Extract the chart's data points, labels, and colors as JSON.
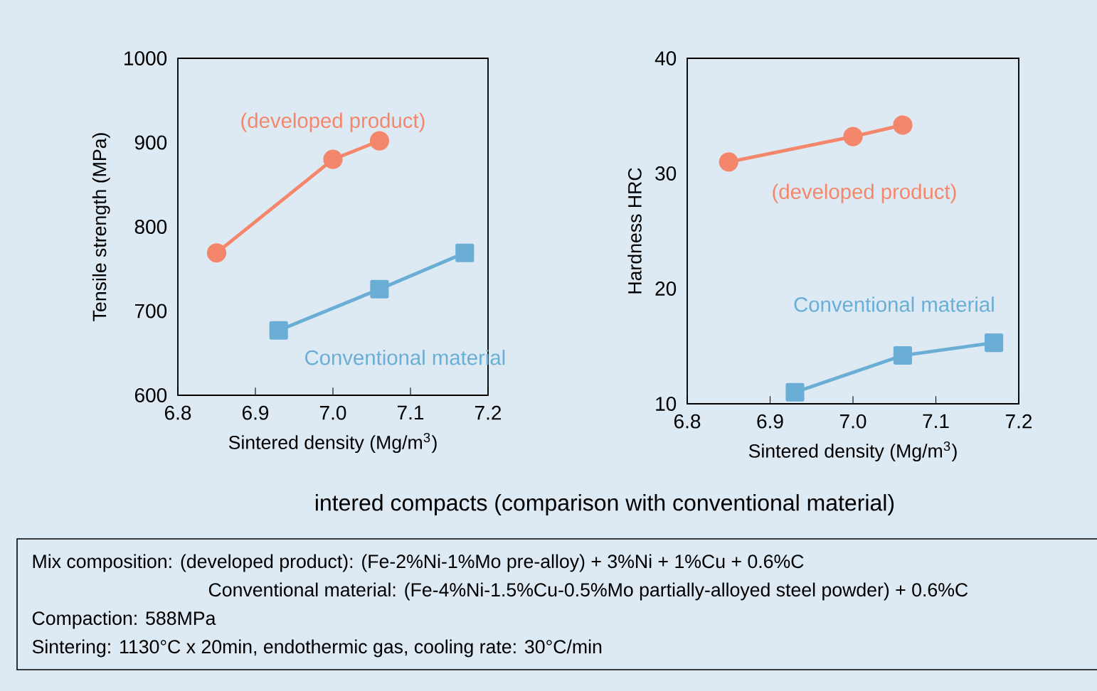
{
  "chart_data": [
    {
      "type": "line",
      "xlabel": "Sintered density (Mg/m$^{3}$)",
      "ylabel": "Tensile strength (MPa)",
      "xlim": [
        6.8,
        7.2
      ],
      "xticks": [
        6.8,
        6.9,
        {
          "value": 7.0,
          "label": "7.0"
        },
        7.1,
        7.2
      ],
      "ylim": [
        600,
        1000
      ],
      "yticks": [
        600,
        700,
        800,
        900,
        1000
      ],
      "line_style": "solid",
      "series": [
        {
          "name": "(developed product)",
          "color": "#f4876b",
          "marker": "circle",
          "x": [
            6.85,
            7.0,
            7.06
          ],
          "values": [
            769,
            880,
            902
          ]
        },
        {
          "name": "Conventional material",
          "color": "#6aaed6",
          "marker": "square",
          "x": [
            6.93,
            7.06,
            7.17
          ],
          "values": [
            677,
            726,
            769
          ]
        }
      ],
      "annotations": [
        "intered compacts (comparison with conventional material)",
        "Mix composition: (developed product): (Fe-2%Ni-1%Mo pre-alloy) + 3%Ni + 1%Cu + 0.6%C",
        "Conventional material: (Fe-4%Ni-1.5%Cu-0.5%Mo partially-alloyed steel powder) + 0.6%C",
        "Compaction: 588MPa",
        "Sintering: 1130°C x 20min, endothermic gas, cooling rate: 30°C/min"
      ]
    },
    {
      "type": "line",
      "xlabel": "Sintered density (Mg/m$^{3}$)",
      "ylabel": "Hardness HRC",
      "xlim": [
        6.8,
        7.2
      ],
      "xticks": [
        6.8,
        6.9,
        {
          "value": 7.0,
          "label": "7.0"
        },
        7.1,
        7.2
      ],
      "ylim": [
        10,
        40
      ],
      "yticks": [
        10,
        20,
        30,
        40
      ],
      "line_style": "solid",
      "series": [
        {
          "name": "(developed product)",
          "color": "#f4876b",
          "marker": "circle",
          "x": [
            6.85,
            7.0,
            7.06
          ],
          "values": [
            31.0,
            33.2,
            34.2
          ]
        },
        {
          "name": "Conventional material",
          "color": "#6aaed6",
          "marker": "square",
          "x": [
            6.93,
            7.06,
            7.17
          ],
          "values": [
            11.0,
            14.2,
            15.3
          ]
        }
      ]
    }
  ]
}
